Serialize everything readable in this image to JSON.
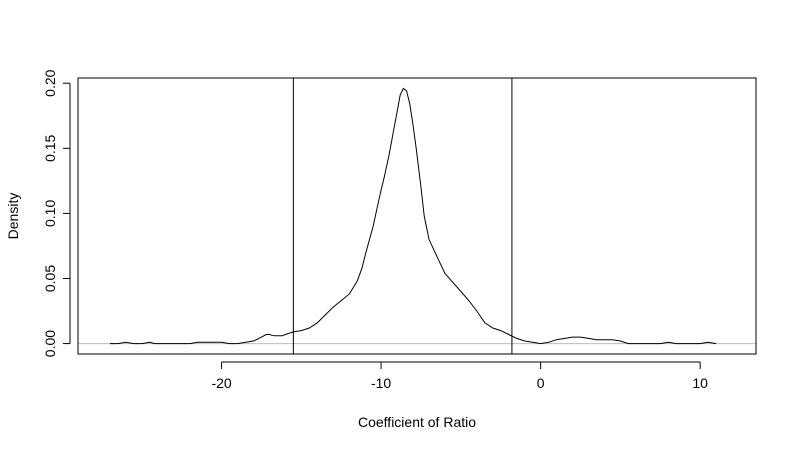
{
  "chart_data": {
    "type": "line",
    "title": "",
    "xlabel": "Coefficient of Ratio",
    "ylabel": "Density",
    "xlim": [
      -29,
      13.5
    ],
    "ylim": [
      -0.008,
      0.204
    ],
    "x_ticks": [
      -20,
      -10,
      0,
      10
    ],
    "x_tick_labels": [
      "-20",
      "-10",
      "0",
      "10"
    ],
    "y_ticks": [
      0.0,
      0.05,
      0.1,
      0.15,
      0.2
    ],
    "y_tick_labels": [
      "0.00",
      "0.05",
      "0.10",
      "0.15",
      "0.20"
    ],
    "grid": false,
    "legend": "none",
    "vertical_lines": [
      -15.5,
      -1.8
    ],
    "horizontal_reference": 0,
    "colors": {
      "curve": "#000000",
      "reference": "#bdbdbd",
      "frame": "#000000"
    },
    "series": [
      {
        "x": [
          -27.0,
          -26.5,
          -26.0,
          -25.5,
          -25.0,
          -24.5,
          -24.2,
          -23.8,
          -23.0,
          -22.0,
          -21.5,
          -21.0,
          -20.5,
          -20.0,
          -19.5,
          -19.0,
          -18.5,
          -18.0,
          -17.5,
          -17.2,
          -17.0,
          -16.7,
          -16.5,
          -16.2,
          -16.0,
          -15.5,
          -15.0,
          -14.5,
          -14.0,
          -13.5,
          -13.0,
          -12.5,
          -12.0,
          -11.5,
          -11.2,
          -11.0,
          -10.5,
          -10.2,
          -10.0,
          -9.8,
          -9.5,
          -9.2,
          -9.0,
          -8.8,
          -8.6,
          -8.4,
          -8.2,
          -8.0,
          -7.8,
          -7.5,
          -7.3,
          -7.0,
          -6.5,
          -6.0,
          -5.5,
          -5.0,
          -4.5,
          -4.0,
          -3.5,
          -3.0,
          -2.5,
          -2.0,
          -1.5,
          -1.0,
          -0.5,
          0.0,
          0.5,
          1.0,
          1.5,
          2.0,
          2.5,
          3.0,
          3.5,
          4.0,
          4.5,
          5.0,
          5.5,
          6.0,
          6.5,
          7.0,
          7.5,
          8.0,
          8.5,
          9.0,
          9.5,
          10.0,
          10.5,
          11.0
        ],
        "values": [
          0.0,
          0.0,
          0.001,
          0.0,
          0.0,
          0.001,
          0.0,
          0.0,
          0.0,
          0.0,
          0.001,
          0.001,
          0.001,
          0.001,
          0.0,
          0.0,
          0.001,
          0.002,
          0.005,
          0.007,
          0.007,
          0.006,
          0.006,
          0.006,
          0.007,
          0.009,
          0.01,
          0.012,
          0.016,
          0.022,
          0.028,
          0.033,
          0.038,
          0.048,
          0.058,
          0.068,
          0.09,
          0.107,
          0.118,
          0.128,
          0.145,
          0.165,
          0.178,
          0.191,
          0.196,
          0.194,
          0.184,
          0.168,
          0.15,
          0.12,
          0.098,
          0.08,
          0.067,
          0.054,
          0.047,
          0.04,
          0.033,
          0.025,
          0.016,
          0.012,
          0.01,
          0.007,
          0.004,
          0.002,
          0.001,
          0.0,
          0.001,
          0.003,
          0.004,
          0.005,
          0.005,
          0.004,
          0.003,
          0.003,
          0.003,
          0.002,
          0.0,
          0.0,
          0.0,
          0.0,
          0.0,
          0.001,
          0.0,
          0.0,
          0.0,
          0.0,
          0.001,
          0.0
        ]
      }
    ]
  }
}
